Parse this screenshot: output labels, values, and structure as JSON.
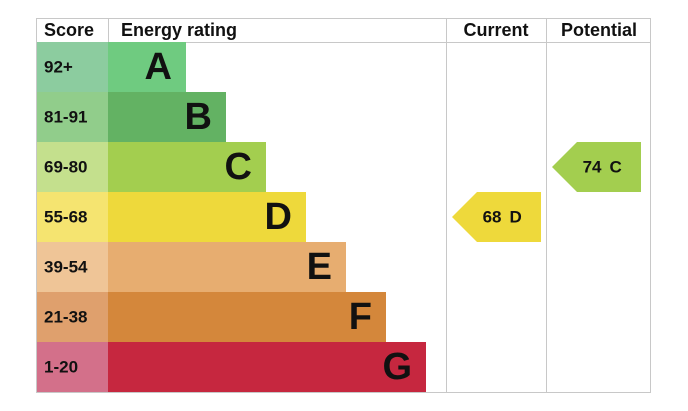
{
  "header": {
    "score": "Score",
    "rating": "Energy rating",
    "current": "Current",
    "potential": "Potential"
  },
  "bands": [
    {
      "score": "92+",
      "letter": "A",
      "color": "#6fcb80",
      "score_color": "#8ccc9f"
    },
    {
      "score": "81-91",
      "letter": "B",
      "color": "#63b263",
      "score_color": "#91cd8b"
    },
    {
      "score": "69-80",
      "letter": "C",
      "color": "#a3ce4f",
      "score_color": "#c4e08d"
    },
    {
      "score": "55-68",
      "letter": "D",
      "color": "#eed93b",
      "score_color": "#f5e470"
    },
    {
      "score": "39-54",
      "letter": "E",
      "color": "#e7ad70",
      "score_color": "#efc597"
    },
    {
      "score": "21-38",
      "letter": "F",
      "color": "#d4873b",
      "score_color": "#dfa06d"
    },
    {
      "score": "1-20",
      "letter": "G",
      "color": "#c6273f",
      "score_color": "#d3708a"
    }
  ],
  "current": {
    "score": 68,
    "rating": "D"
  },
  "potential": {
    "score": 74,
    "rating": "C"
  }
}
